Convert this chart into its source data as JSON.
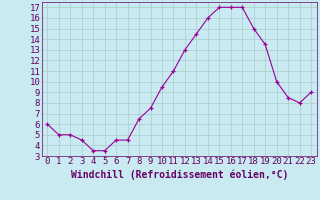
{
  "x": [
    0,
    1,
    2,
    3,
    4,
    5,
    6,
    7,
    8,
    9,
    10,
    11,
    12,
    13,
    14,
    15,
    16,
    17,
    18,
    19,
    20,
    21,
    22,
    23
  ],
  "y": [
    6.0,
    5.0,
    5.0,
    4.5,
    3.5,
    3.5,
    4.5,
    4.5,
    6.5,
    7.5,
    9.5,
    11.0,
    13.0,
    14.5,
    16.0,
    17.0,
    17.0,
    17.0,
    15.0,
    13.5,
    10.0,
    8.5,
    8.0,
    9.0
  ],
  "line_color": "#990099",
  "marker_color": "#990099",
  "bg_color": "#c8eaf0",
  "grid_color": "#aacccc",
  "axis_label_color": "#660066",
  "tick_color": "#660066",
  "xlabel": "Windchill (Refroidissement éolien,°C)",
  "xlim": [
    -0.5,
    23.5
  ],
  "ylim": [
    3,
    17.5
  ],
  "yticks": [
    3,
    4,
    5,
    6,
    7,
    8,
    9,
    10,
    11,
    12,
    13,
    14,
    15,
    16,
    17
  ],
  "xticks": [
    0,
    1,
    2,
    3,
    4,
    5,
    6,
    7,
    8,
    9,
    10,
    11,
    12,
    13,
    14,
    15,
    16,
    17,
    18,
    19,
    20,
    21,
    22,
    23
  ],
  "font_size": 6.5,
  "label_font_size": 7.0
}
